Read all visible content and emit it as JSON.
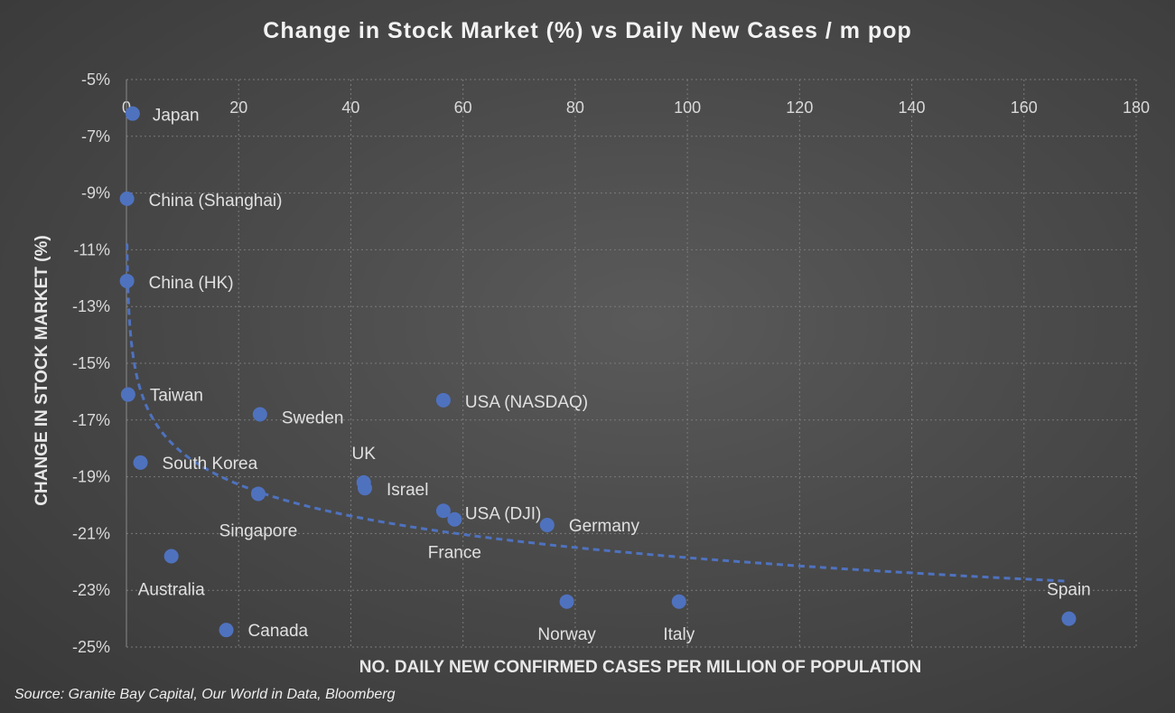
{
  "chart_data": {
    "type": "scatter",
    "title": "Change in Stock Market (%) vs Daily New Cases / m pop",
    "xlabel": "NO. DAILY NEW CONFIRMED CASES PER MILLION OF POPULATION",
    "ylabel": "CHANGE IN STOCK MARKET (%)",
    "xlim": [
      0,
      180
    ],
    "ylim": [
      -25,
      -5
    ],
    "x_ticks": [
      "0",
      "20",
      "40",
      "60",
      "80",
      "100",
      "120",
      "140",
      "160",
      "180"
    ],
    "y_ticks": [
      "-5%",
      "-7%",
      "-9%",
      "-11%",
      "-13%",
      "-15%",
      "-17%",
      "-19%",
      "-21%",
      "-23%",
      "-25%"
    ],
    "grid": true,
    "x_axis_position": "top",
    "trendline": "logarithmic, dashed",
    "series_color": "#4f72bf",
    "points": [
      {
        "label": "Japan",
        "x": 1.1,
        "y": -6.2
      },
      {
        "label": "China (Shanghai)",
        "x": 0.1,
        "y": -9.2
      },
      {
        "label": "China (HK)",
        "x": 0.1,
        "y": -12.1
      },
      {
        "label": "Taiwan",
        "x": 0.3,
        "y": -16.1
      },
      {
        "label": "South Korea",
        "x": 2.5,
        "y": -18.5
      },
      {
        "label": "Australia",
        "x": 8.0,
        "y": -21.8
      },
      {
        "label": "Canada",
        "x": 17.8,
        "y": -24.4
      },
      {
        "label": "Singapore",
        "x": 23.5,
        "y": -19.6
      },
      {
        "label": "Sweden",
        "x": 23.8,
        "y": -16.8
      },
      {
        "label": "UK",
        "x": 42.3,
        "y": -19.2
      },
      {
        "label": "Israel",
        "x": 42.5,
        "y": -19.4
      },
      {
        "label": "USA (NASDAQ)",
        "x": 56.5,
        "y": -16.3
      },
      {
        "label": "USA (DJI)",
        "x": 56.5,
        "y": -20.2
      },
      {
        "label": "France",
        "x": 58.5,
        "y": -20.5
      },
      {
        "label": "Germany",
        "x": 75.0,
        "y": -20.7
      },
      {
        "label": "Norway",
        "x": 78.5,
        "y": -23.4
      },
      {
        "label": "Italy",
        "x": 98.5,
        "y": -23.4
      },
      {
        "label": "Spain",
        "x": 168.0,
        "y": -24.0
      }
    ]
  },
  "source": "Source:  Granite Bay Capital, Our World in Data, Bloomberg"
}
